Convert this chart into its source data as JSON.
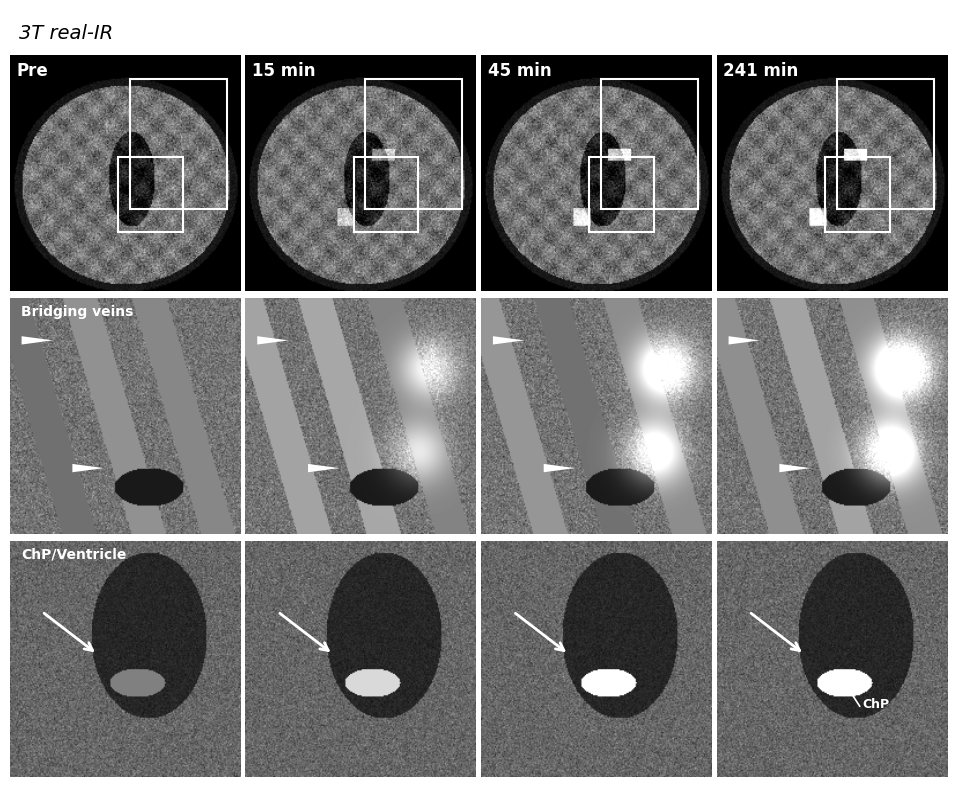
{
  "title": "3T real-IR",
  "title_style": "italic",
  "col_labels": [
    "Pre",
    "15 min",
    "45 min",
    "241 min"
  ],
  "row_labels": [
    "",
    "Bridging veins",
    "ChP/Ventricle"
  ],
  "background_color": "#ffffff",
  "figure_size": [
    9.57,
    7.85
  ],
  "grid_rows": 3,
  "grid_cols": 4,
  "title_fontsize": 14,
  "label_fontsize": 11,
  "col_label_fontsize": 12,
  "annotation_color": "white"
}
